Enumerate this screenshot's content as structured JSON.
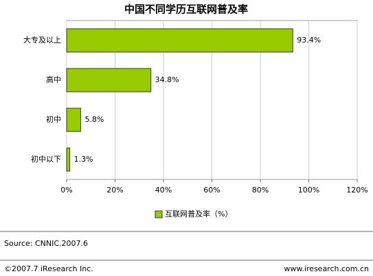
{
  "chart_data": {
    "type": "bar",
    "orientation": "horizontal",
    "title": "中国不同学历互联网普及率",
    "categories": [
      "大专及以上",
      "高中",
      "初中",
      "初中以下"
    ],
    "series": [
      {
        "name": "互联网普及率（%）",
        "color": "#99cc00",
        "values": [
          93.4,
          34.8,
          5.8,
          1.3
        ],
        "value_labels": [
          "93.4%",
          "34.8%",
          "5.8%",
          "1.3%"
        ]
      }
    ],
    "xlim": [
      0,
      120
    ],
    "xticks": [
      {
        "value": 0,
        "label": "0%"
      },
      {
        "value": 20,
        "label": "20%"
      },
      {
        "value": 40,
        "label": "40%"
      },
      {
        "value": 60,
        "label": "60%"
      },
      {
        "value": 80,
        "label": "80%"
      },
      {
        "value": 100,
        "label": "100%"
      },
      {
        "value": 120,
        "label": "120%"
      }
    ],
    "grid": true,
    "legend": "bottom"
  },
  "source": "Source:  CNNIC.2007.6",
  "footer": {
    "left": "©2007.7 iResearch Inc.",
    "right": "www.iresearch.com.cn"
  }
}
